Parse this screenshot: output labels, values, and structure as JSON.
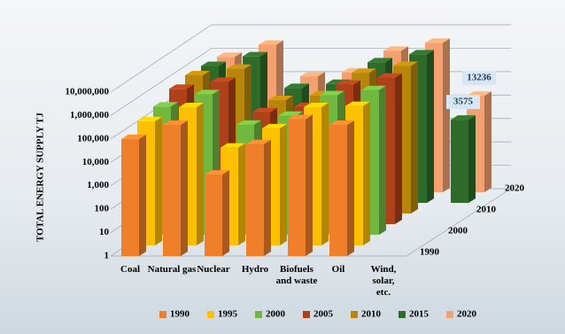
{
  "chart_data": {
    "type": "bar3d",
    "y_label": "TOTAL ENERGY SUPPLY TJ",
    "log_scale": true,
    "categories": [
      "Coal",
      "Natural gas",
      "Nuclear",
      "Hydro",
      "Biofuels and waste",
      "Oil",
      "Wind, solar, etc."
    ],
    "series": [
      {
        "name": "1990",
        "color": "#f07f2b",
        "values": [
          100000,
          400000,
          3000,
          60000,
          700000,
          400000,
          null
        ]
      },
      {
        "name": "1995",
        "color": "#ffc000",
        "values": [
          200000,
          800000,
          15000,
          100000,
          800000,
          900000,
          null
        ]
      },
      {
        "name": "2000",
        "color": "#70b840",
        "values": [
          300000,
          1000000,
          50000,
          120000,
          900000,
          1500000,
          null
        ]
      },
      {
        "name": "2005",
        "color": "#b0401a",
        "values": [
          600000,
          1200000,
          60000,
          100000,
          900000,
          1800000,
          null
        ]
      },
      {
        "name": "2010",
        "color": "#b8860b",
        "values": [
          800000,
          1500000,
          70000,
          110000,
          1000000,
          2000000,
          null
        ]
      },
      {
        "name": "2015",
        "color": "#2e6b2a",
        "values": [
          700000,
          1800000,
          80000,
          120000,
          1000000,
          2200000,
          3575
        ]
      },
      {
        "name": "2020",
        "color": "#f4a070",
        "values": [
          600000,
          2000000,
          90000,
          130000,
          1100000,
          2400000,
          13236
        ]
      }
    ],
    "ylim": [
      1,
      10000000
    ],
    "yticks": [
      1,
      10,
      100,
      {
        "value": 1000,
        "label": "1,000"
      },
      {
        "value": 10000,
        "label": "10,000"
      },
      {
        "value": 100000,
        "label": "100,000"
      },
      {
        "value": 1000000,
        "label": "1,000,000"
      },
      {
        "value": 10000000,
        "label": "10,000,000"
      }
    ],
    "grid": true
  }
}
